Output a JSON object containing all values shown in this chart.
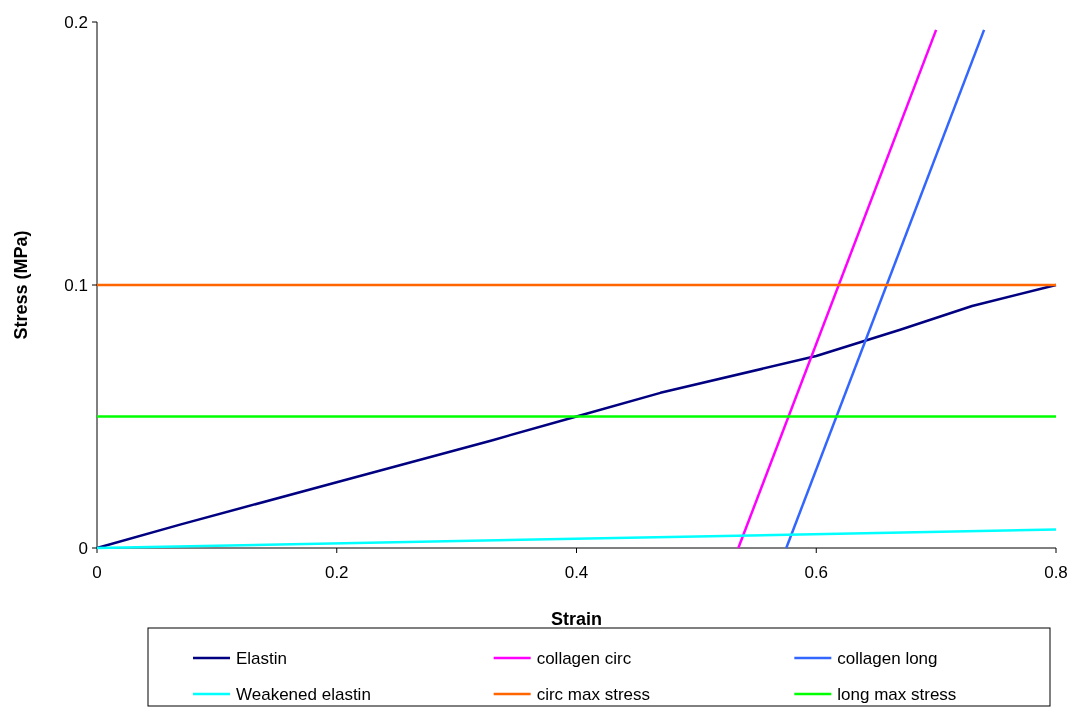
{
  "chart_data": {
    "type": "line",
    "xlabel": "Strain",
    "ylabel": "Stress (MPa)",
    "xlim": [
      0,
      0.8
    ],
    "xticks": [
      0,
      0.2,
      0.4,
      0.6,
      0.8
    ],
    "ylim": [
      0,
      0.2
    ],
    "yticks": [
      0,
      0.1,
      0.2
    ],
    "grid": false,
    "legend": "bottom",
    "marker": "none",
    "line_style": "solid",
    "series": [
      {
        "name": "Elastin",
        "color": "#000080",
        "x": [
          0,
          0.07,
          0.2,
          0.33,
          0.4,
          0.47,
          0.6,
          0.67,
          0.73,
          0.8
        ],
        "values": [
          0,
          0.009,
          0.025,
          0.041,
          0.05,
          0.059,
          0.073,
          0.083,
          0.092,
          0.1
        ]
      },
      {
        "name": "collagen circ",
        "color": "#ff00ff",
        "x": [
          0.535,
          0.7
        ],
        "values": [
          0,
          0.197
        ]
      },
      {
        "name": "collagen long",
        "color": "#3366ff",
        "x": [
          0.575,
          0.74
        ],
        "values": [
          0,
          0.197
        ]
      },
      {
        "name": "Weakened elastin",
        "color": "#00ffff",
        "x": [
          0,
          0.8
        ],
        "values": [
          0,
          0.007
        ]
      },
      {
        "name": "circ max stress",
        "color": "#ff6600",
        "x": [
          0,
          0.8
        ],
        "values": [
          0.1,
          0.1
        ]
      },
      {
        "name": "long max stress",
        "color": "#00ff00",
        "x": [
          0,
          0.8
        ],
        "values": [
          0.05,
          0.05
        ]
      }
    ]
  }
}
